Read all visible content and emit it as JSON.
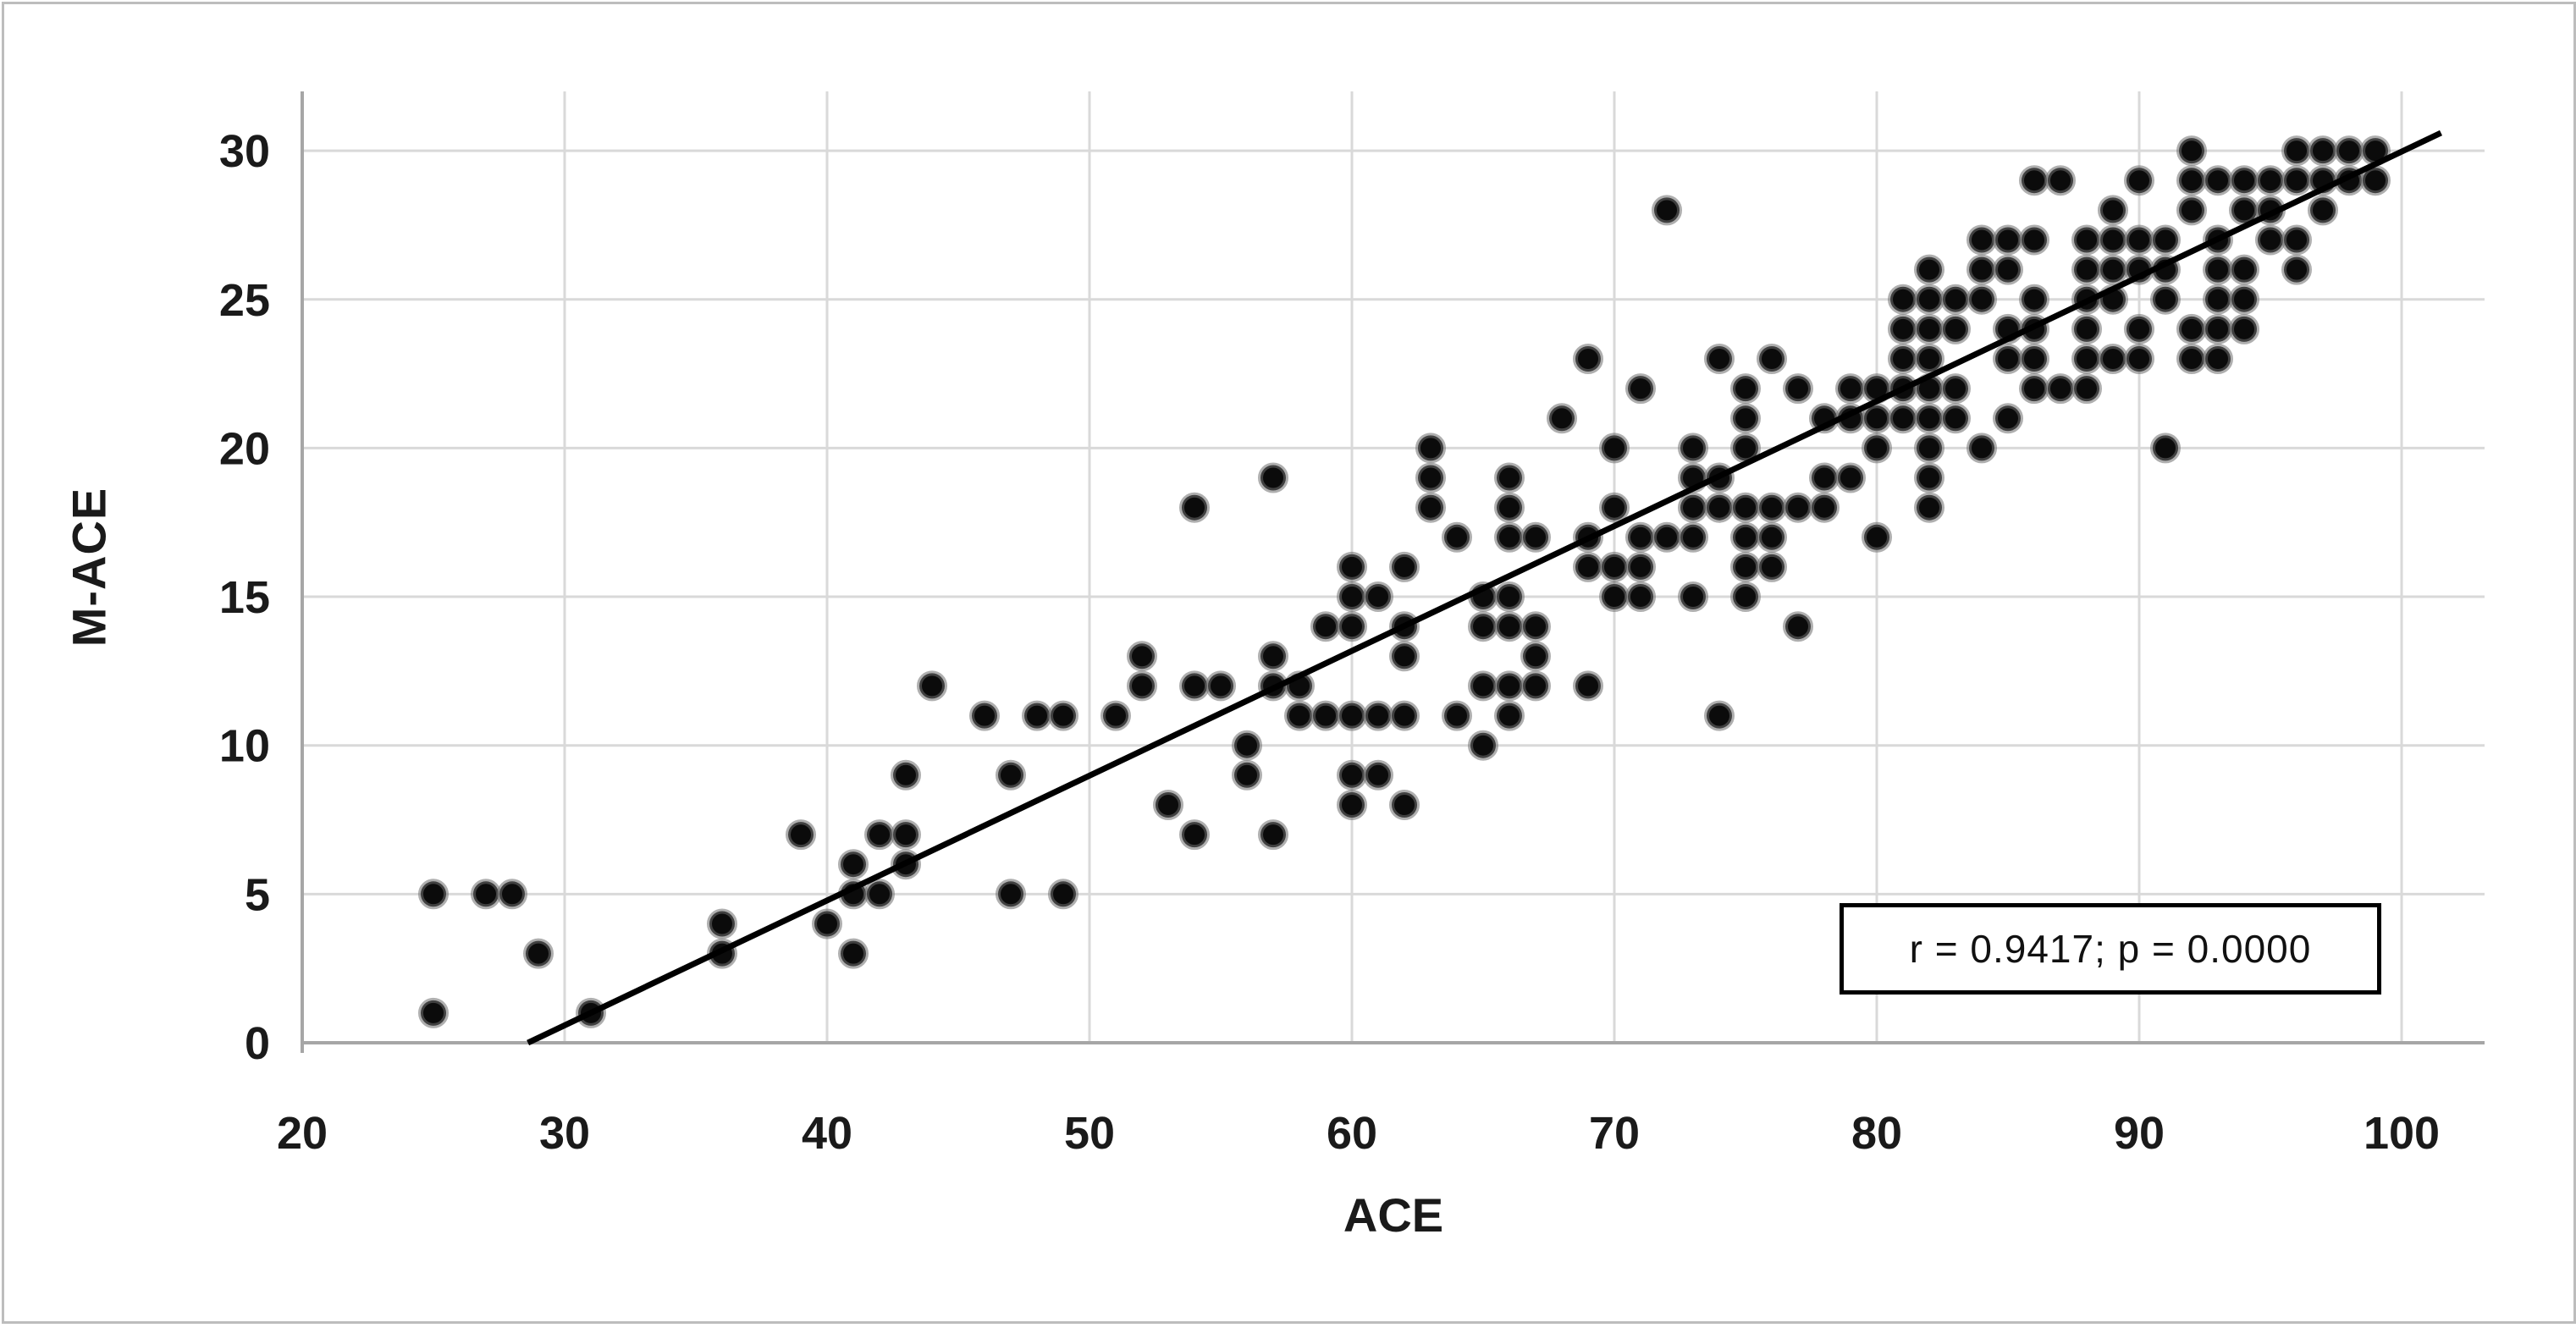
{
  "figure": {
    "background": "#ffffff",
    "border_color": "#bdbdbd"
  },
  "chart_data": {
    "type": "scatter",
    "title": "",
    "xlabel": "ACE",
    "ylabel": "M-ACE",
    "xlim": [
      20,
      100
    ],
    "ylim": [
      0,
      30
    ],
    "xticks": [
      20,
      30,
      40,
      50,
      60,
      70,
      80,
      90,
      100
    ],
    "yticks": [
      0,
      5,
      10,
      15,
      20,
      25,
      30
    ],
    "grid": true,
    "legend_position": "none",
    "grid_color": "#d9d9d9",
    "axis_line_color": "#a6a6a6",
    "tick_label_color": "#1a1a1a",
    "marker_color": "#0b0b0b",
    "marker_halo_color": "#6e6e6e",
    "trendline": {
      "x1": 28.6,
      "y1": 0,
      "x2": 101.5,
      "y2": 30.6,
      "color": "#000000"
    },
    "annotation": "r = 0.9417; p = 0.0000",
    "points": [
      [
        25,
        1
      ],
      [
        31,
        1
      ],
      [
        29,
        3
      ],
      [
        36,
        3
      ],
      [
        41,
        3
      ],
      [
        36,
        4
      ],
      [
        40,
        4
      ],
      [
        25,
        5
      ],
      [
        27,
        5
      ],
      [
        28,
        5
      ],
      [
        41,
        5
      ],
      [
        42,
        5
      ],
      [
        47,
        5
      ],
      [
        49,
        5
      ],
      [
        41,
        6
      ],
      [
        43,
        6
      ],
      [
        39,
        7
      ],
      [
        42,
        7
      ],
      [
        43,
        7
      ],
      [
        54,
        7
      ],
      [
        57,
        7
      ],
      [
        53,
        8
      ],
      [
        60,
        8
      ],
      [
        62,
        8
      ],
      [
        43,
        9
      ],
      [
        47,
        9
      ],
      [
        56,
        9
      ],
      [
        60,
        9
      ],
      [
        61,
        9
      ],
      [
        56,
        10
      ],
      [
        65,
        10
      ],
      [
        46,
        11
      ],
      [
        48,
        11
      ],
      [
        49,
        11
      ],
      [
        51,
        11
      ],
      [
        58,
        11
      ],
      [
        59,
        11
      ],
      [
        60,
        11
      ],
      [
        61,
        11
      ],
      [
        62,
        11
      ],
      [
        64,
        11
      ],
      [
        66,
        11
      ],
      [
        74,
        11
      ],
      [
        44,
        12
      ],
      [
        52,
        12
      ],
      [
        54,
        12
      ],
      [
        55,
        12
      ],
      [
        57,
        12
      ],
      [
        58,
        12
      ],
      [
        65,
        12
      ],
      [
        66,
        12
      ],
      [
        67,
        12
      ],
      [
        69,
        12
      ],
      [
        52,
        13
      ],
      [
        57,
        13
      ],
      [
        62,
        13
      ],
      [
        67,
        13
      ],
      [
        59,
        14
      ],
      [
        60,
        14
      ],
      [
        62,
        14
      ],
      [
        65,
        14
      ],
      [
        66,
        14
      ],
      [
        67,
        14
      ],
      [
        77,
        14
      ],
      [
        60,
        15
      ],
      [
        61,
        15
      ],
      [
        65,
        15
      ],
      [
        66,
        15
      ],
      [
        70,
        15
      ],
      [
        71,
        15
      ],
      [
        73,
        15
      ],
      [
        75,
        15
      ],
      [
        60,
        16
      ],
      [
        62,
        16
      ],
      [
        69,
        16
      ],
      [
        70,
        16
      ],
      [
        71,
        16
      ],
      [
        75,
        16
      ],
      [
        76,
        16
      ],
      [
        64,
        17
      ],
      [
        66,
        17
      ],
      [
        67,
        17
      ],
      [
        69,
        17
      ],
      [
        71,
        17
      ],
      [
        72,
        17
      ],
      [
        73,
        17
      ],
      [
        75,
        17
      ],
      [
        76,
        17
      ],
      [
        80,
        17
      ],
      [
        54,
        18
      ],
      [
        63,
        18
      ],
      [
        66,
        18
      ],
      [
        70,
        18
      ],
      [
        73,
        18
      ],
      [
        74,
        18
      ],
      [
        75,
        18
      ],
      [
        76,
        18
      ],
      [
        77,
        18
      ],
      [
        78,
        18
      ],
      [
        82,
        18
      ],
      [
        57,
        19
      ],
      [
        63,
        19
      ],
      [
        66,
        19
      ],
      [
        73,
        19
      ],
      [
        74,
        19
      ],
      [
        78,
        19
      ],
      [
        79,
        19
      ],
      [
        82,
        19
      ],
      [
        63,
        20
      ],
      [
        70,
        20
      ],
      [
        73,
        20
      ],
      [
        75,
        20
      ],
      [
        80,
        20
      ],
      [
        82,
        20
      ],
      [
        84,
        20
      ],
      [
        91,
        20
      ],
      [
        68,
        21
      ],
      [
        75,
        21
      ],
      [
        78,
        21
      ],
      [
        79,
        21
      ],
      [
        80,
        21
      ],
      [
        81,
        21
      ],
      [
        82,
        21
      ],
      [
        83,
        21
      ],
      [
        85,
        21
      ],
      [
        71,
        22
      ],
      [
        75,
        22
      ],
      [
        77,
        22
      ],
      [
        79,
        22
      ],
      [
        80,
        22
      ],
      [
        81,
        22
      ],
      [
        82,
        22
      ],
      [
        83,
        22
      ],
      [
        86,
        22
      ],
      [
        87,
        22
      ],
      [
        88,
        22
      ],
      [
        69,
        23
      ],
      [
        74,
        23
      ],
      [
        76,
        23
      ],
      [
        81,
        23
      ],
      [
        82,
        23
      ],
      [
        85,
        23
      ],
      [
        86,
        23
      ],
      [
        88,
        23
      ],
      [
        89,
        23
      ],
      [
        90,
        23
      ],
      [
        92,
        23
      ],
      [
        93,
        23
      ],
      [
        81,
        24
      ],
      [
        82,
        24
      ],
      [
        83,
        24
      ],
      [
        85,
        24
      ],
      [
        86,
        24
      ],
      [
        88,
        24
      ],
      [
        90,
        24
      ],
      [
        92,
        24
      ],
      [
        93,
        24
      ],
      [
        94,
        24
      ],
      [
        81,
        25
      ],
      [
        82,
        25
      ],
      [
        83,
        25
      ],
      [
        84,
        25
      ],
      [
        86,
        25
      ],
      [
        88,
        25
      ],
      [
        89,
        25
      ],
      [
        91,
        25
      ],
      [
        93,
        25
      ],
      [
        94,
        25
      ],
      [
        82,
        26
      ],
      [
        84,
        26
      ],
      [
        85,
        26
      ],
      [
        88,
        26
      ],
      [
        89,
        26
      ],
      [
        90,
        26
      ],
      [
        91,
        26
      ],
      [
        93,
        26
      ],
      [
        94,
        26
      ],
      [
        96,
        26
      ],
      [
        84,
        27
      ],
      [
        85,
        27
      ],
      [
        86,
        27
      ],
      [
        88,
        27
      ],
      [
        89,
        27
      ],
      [
        90,
        27
      ],
      [
        91,
        27
      ],
      [
        93,
        27
      ],
      [
        95,
        27
      ],
      [
        96,
        27
      ],
      [
        72,
        28
      ],
      [
        89,
        28
      ],
      [
        92,
        28
      ],
      [
        94,
        28
      ],
      [
        95,
        28
      ],
      [
        97,
        28
      ],
      [
        86,
        29
      ],
      [
        87,
        29
      ],
      [
        90,
        29
      ],
      [
        92,
        29
      ],
      [
        93,
        29
      ],
      [
        94,
        29
      ],
      [
        95,
        29
      ],
      [
        96,
        29
      ],
      [
        97,
        29
      ],
      [
        98,
        29
      ],
      [
        99,
        29
      ],
      [
        92,
        30
      ],
      [
        96,
        30
      ],
      [
        97,
        30
      ],
      [
        98,
        30
      ],
      [
        99,
        30
      ]
    ]
  }
}
